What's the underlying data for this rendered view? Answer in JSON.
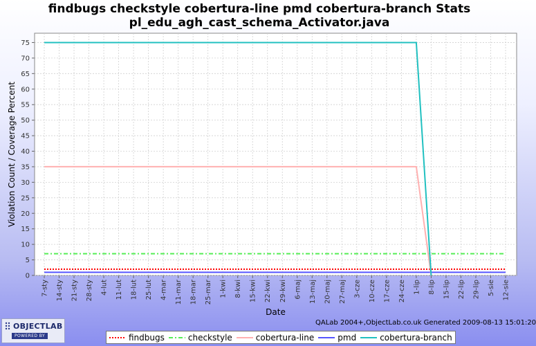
{
  "title_line1": "findbugs checkstyle cobertura-line pmd cobertura-branch  Stats",
  "title_line2": "pl_edu_agh_cast_schema_Activator.java",
  "footer_credit": "QALab 2004+,ObjectLab.co.uk Generated 2009-08-13 15:01:20",
  "logo": {
    "name": "OBJECTLAB",
    "tagline": "POWERED BY"
  },
  "chart_data": {
    "type": "line",
    "title": "findbugs checkstyle cobertura-line pmd cobertura-branch  Stats pl_edu_agh_cast_schema_Activator.java",
    "xlabel": "Date",
    "ylabel": "Violation Count / Coverage Percent",
    "ylim": [
      0,
      78
    ],
    "yticks": [
      0,
      5,
      10,
      15,
      20,
      25,
      30,
      35,
      40,
      45,
      50,
      55,
      60,
      65,
      70,
      75
    ],
    "grid": true,
    "legend_position": "bottom",
    "x": [
      "7-sty",
      "14-sty",
      "21-sty",
      "28-sty",
      "4-lut",
      "11-lut",
      "18-lut",
      "25-lut",
      "4-mar",
      "11-mar",
      "18-mar",
      "25-mar",
      "1-kwi",
      "8-kwi",
      "15-kwi",
      "22-kwi",
      "29-kwi",
      "6-maj",
      "13-maj",
      "20-maj",
      "27-maj",
      "3-cze",
      "10-cze",
      "17-cze",
      "24-cze",
      "1-lip",
      "8-lip",
      "15-lip",
      "22-lip",
      "29-lip",
      "5-sie",
      "12-sie"
    ],
    "series": [
      {
        "name": "findbugs",
        "color": "#ff0000",
        "style": "dotted",
        "values": [
          2,
          2,
          2,
          2,
          2,
          2,
          2,
          2,
          2,
          2,
          2,
          2,
          2,
          2,
          2,
          2,
          2,
          2,
          2,
          2,
          2,
          2,
          2,
          2,
          2,
          2,
          2,
          2,
          2,
          2,
          2,
          2
        ]
      },
      {
        "name": "checkstyle",
        "color": "#55ee55",
        "style": "dashdot",
        "values": [
          7,
          7,
          7,
          7,
          7,
          7,
          7,
          7,
          7,
          7,
          7,
          7,
          7,
          7,
          7,
          7,
          7,
          7,
          7,
          7,
          7,
          7,
          7,
          7,
          7,
          7,
          7,
          7,
          7,
          7,
          7,
          7
        ]
      },
      {
        "name": "cobertura-line",
        "color": "#ffb0b0",
        "style": "solid",
        "values": [
          35,
          35,
          35,
          35,
          35,
          35,
          35,
          35,
          35,
          35,
          35,
          35,
          35,
          35,
          35,
          35,
          35,
          35,
          35,
          35,
          35,
          35,
          35,
          35,
          35,
          35,
          0,
          null,
          null,
          null,
          null,
          null
        ]
      },
      {
        "name": "pmd",
        "color": "#5555ff",
        "style": "solid",
        "values": [
          1,
          1,
          1,
          1,
          1,
          1,
          1,
          1,
          1,
          1,
          1,
          1,
          1,
          1,
          1,
          1,
          1,
          1,
          1,
          1,
          1,
          1,
          1,
          1,
          1,
          1,
          1,
          1,
          1,
          1,
          1,
          1
        ]
      },
      {
        "name": "cobertura-branch",
        "color": "#20c0c0",
        "style": "solid",
        "values": [
          75,
          75,
          75,
          75,
          75,
          75,
          75,
          75,
          75,
          75,
          75,
          75,
          75,
          75,
          75,
          75,
          75,
          75,
          75,
          75,
          75,
          75,
          75,
          75,
          75,
          75,
          0,
          null,
          null,
          null,
          null,
          null
        ]
      }
    ]
  }
}
